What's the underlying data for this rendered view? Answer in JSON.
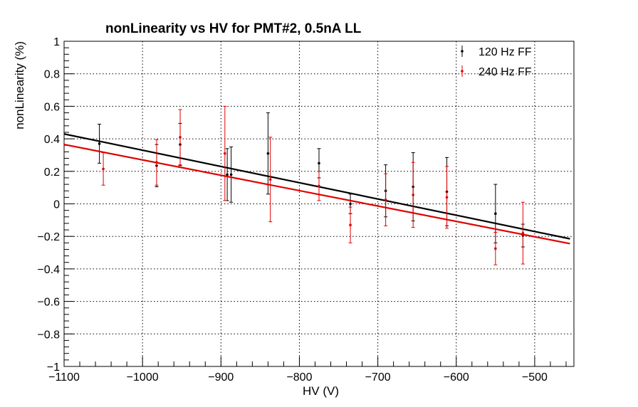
{
  "chart_data": {
    "type": "scatter",
    "title": "nonLinearity vs HV for PMT#2, 0.5nA LL",
    "xlabel": "HV (V)",
    "ylabel": "nonLinearity (%)",
    "xlim": [
      -1100,
      -450
    ],
    "ylim": [
      -1,
      1
    ],
    "x_ticks": [
      -1100,
      -1000,
      -900,
      -800,
      -700,
      -600,
      -500
    ],
    "x_tick_labels": [
      "−1100",
      "−1000",
      "−900",
      "−800",
      "−700",
      "−600",
      "−500"
    ],
    "y_ticks": [
      -1,
      -0.8,
      -0.6,
      -0.4,
      -0.2,
      0,
      0.2,
      0.4,
      0.6,
      0.8,
      1
    ],
    "y_tick_labels": [
      "−1",
      "−0.8",
      "−0.6",
      "−0.4",
      "−0.2",
      "0",
      "0.2",
      "0.4",
      "0.6",
      "0.8",
      "1"
    ],
    "grid": true,
    "legend_position": "top-right",
    "series": [
      {
        "name": "120 Hz FF",
        "color": "#000000",
        "x": [
          -1055,
          -982,
          -952,
          -892,
          -887,
          -840,
          -775,
          -735,
          -690,
          -655,
          -612,
          -550,
          -515
        ],
        "y": [
          0.37,
          0.235,
          0.365,
          0.18,
          0.18,
          0.31,
          0.25,
          0.0,
          0.08,
          0.105,
          0.075,
          -0.06,
          -0.195
        ],
        "yerr": [
          0.12,
          0.13,
          0.13,
          0.16,
          0.17,
          0.25,
          0.09,
          0.06,
          0.16,
          0.21,
          0.21,
          0.18,
          0.07
        ],
        "fit": {
          "x": [
            -1100,
            -455
          ],
          "y": [
            0.43,
            -0.215
          ]
        }
      },
      {
        "name": "240 Hz FF",
        "color": "#e00000",
        "x": [
          -1050,
          -982,
          -952,
          -895,
          -837,
          -775,
          -735,
          -690,
          -655,
          -612,
          -550,
          -515
        ],
        "y": [
          0.215,
          0.255,
          0.41,
          0.31,
          0.15,
          0.11,
          -0.13,
          0.025,
          0.055,
          0.04,
          -0.275,
          -0.18
        ],
        "yerr": [
          0.1,
          0.14,
          0.17,
          0.29,
          0.26,
          0.09,
          0.11,
          0.16,
          0.2,
          0.19,
          0.1,
          0.19
        ],
        "fit": {
          "x": [
            -1100,
            -455
          ],
          "y": [
            0.365,
            -0.245
          ]
        }
      }
    ]
  }
}
